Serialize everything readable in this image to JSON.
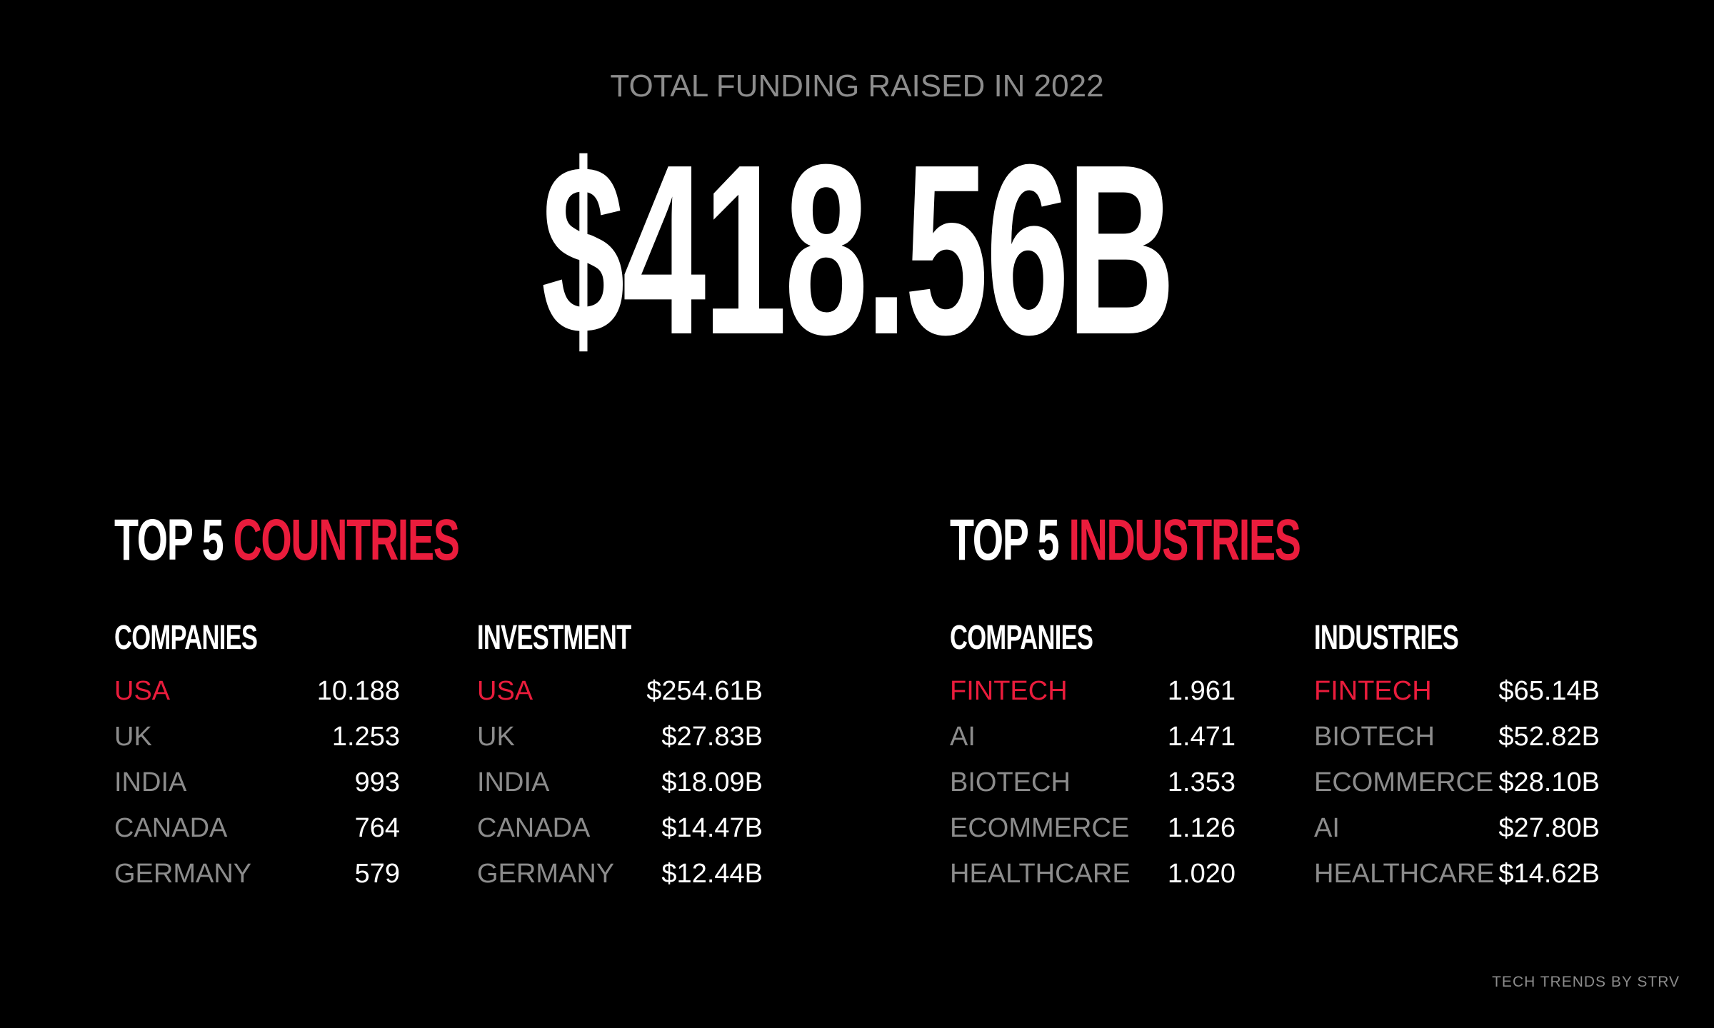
{
  "header": {
    "subtitle": "TOTAL FUNDING RAISED IN 2022",
    "total": "$418.56B"
  },
  "countries": {
    "title_prefix": "TOP 5 ",
    "title_accent": "COUNTRIES",
    "companies": {
      "heading": "COMPANIES",
      "rows": [
        {
          "label": "USA",
          "value": "10.188"
        },
        {
          "label": "UK",
          "value": "1.253"
        },
        {
          "label": "INDIA",
          "value": "993"
        },
        {
          "label": "CANADA",
          "value": "764"
        },
        {
          "label": "GERMANY",
          "value": "579"
        }
      ]
    },
    "investment": {
      "heading": "INVESTMENT",
      "rows": [
        {
          "label": "USA",
          "value": "$254.61B"
        },
        {
          "label": "UK",
          "value": "$27.83B"
        },
        {
          "label": "INDIA",
          "value": "$18.09B"
        },
        {
          "label": "CANADA",
          "value": "$14.47B"
        },
        {
          "label": "GERMANY",
          "value": "$12.44B"
        }
      ]
    }
  },
  "industries": {
    "title_prefix": "TOP 5 ",
    "title_accent": "INDUSTRIES",
    "companies": {
      "heading": "COMPANIES",
      "rows": [
        {
          "label": "FINTECH",
          "value": "1.961"
        },
        {
          "label": "AI",
          "value": "1.471"
        },
        {
          "label": "BIOTECH",
          "value": "1.353"
        },
        {
          "label": "ECOMMERCE",
          "value": "1.126"
        },
        {
          "label": "HEALTHCARE",
          "value": "1.020"
        }
      ]
    },
    "investment": {
      "heading": "INDUSTRIES",
      "rows": [
        {
          "label": "FINTECH",
          "value": "$65.14B"
        },
        {
          "label": "BIOTECH",
          "value": "$52.82B"
        },
        {
          "label": "ECOMMERCE",
          "value": "$28.10B"
        },
        {
          "label": "AI",
          "value": "$27.80B"
        },
        {
          "label": "HEALTHCARE",
          "value": "$14.62B"
        }
      ]
    }
  },
  "footer": {
    "credit": "TECH TRENDS BY STRV"
  },
  "colors": {
    "background": "#000000",
    "accent": "#ea1c3c",
    "muted": "#8c8c8c",
    "text": "#ffffff"
  }
}
